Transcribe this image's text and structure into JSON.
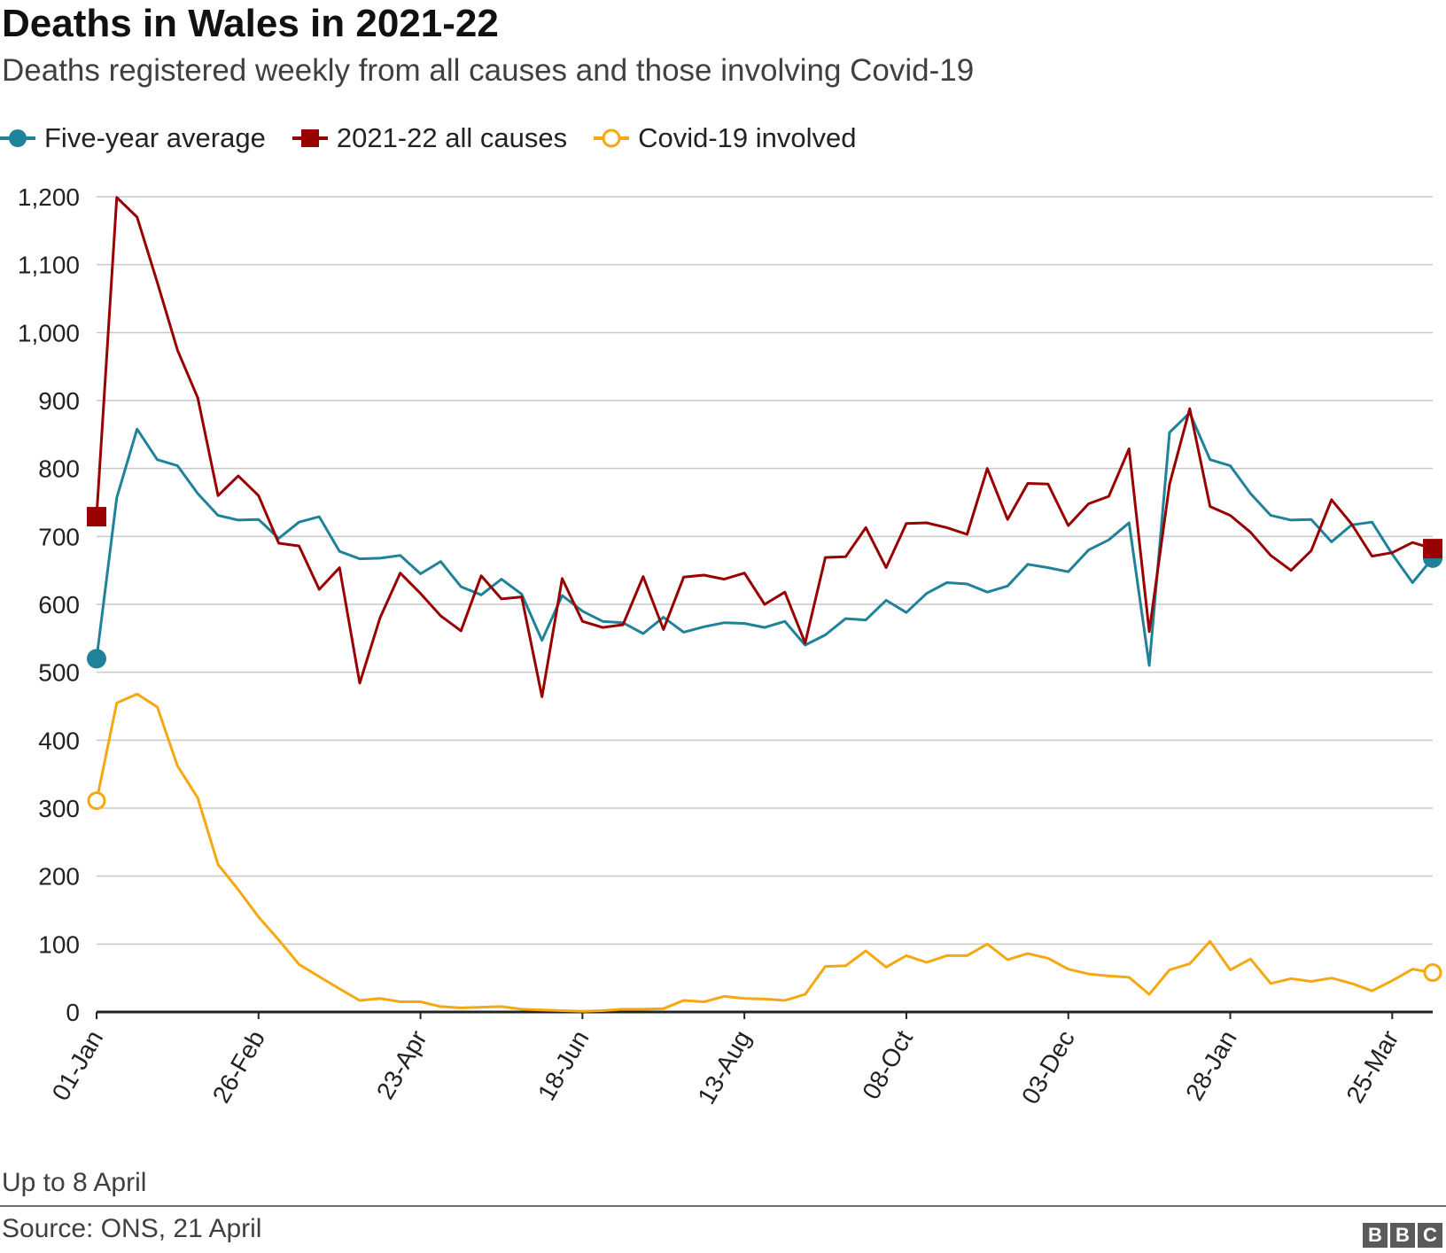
{
  "header": {
    "title": "Deaths in Wales in 2021-22",
    "subtitle": "Deaths registered weekly from all causes and those involving Covid-19"
  },
  "legend": {
    "items": [
      {
        "label": "Five-year average",
        "color": "#1f8299",
        "marker": "circle"
      },
      {
        "label": "2021-22 all causes",
        "color": "#990000",
        "marker": "square"
      },
      {
        "label": "Covid-19 involved",
        "color": "#f5a80f",
        "marker": "open-circle"
      }
    ]
  },
  "chart_data": {
    "type": "line",
    "title": "Deaths in Wales in 2021-22",
    "xlabel": "",
    "ylabel": "",
    "ylim": [
      0,
      1200
    ],
    "yticks": [
      0,
      100,
      200,
      300,
      400,
      500,
      600,
      700,
      800,
      900,
      1000,
      1100,
      1200
    ],
    "ytick_labels": [
      "0",
      "100",
      "200",
      "300",
      "400",
      "500",
      "600",
      "700",
      "800",
      "900",
      "1,000",
      "1,100",
      "1,200"
    ],
    "grid": true,
    "xtick_labels": [
      "01-Jan",
      "26-Feb",
      "23-Apr",
      "18-Jun",
      "13-Aug",
      "08-Oct",
      "03-Dec",
      "28-Jan",
      "25-Mar"
    ],
    "xtick_indices": [
      0,
      8,
      16,
      24,
      32,
      40,
      48,
      56,
      64
    ],
    "series": [
      {
        "name": "Five-year average",
        "color": "#1f8299",
        "marker": "circle",
        "values": [
          520,
          757,
          858,
          813,
          804,
          763,
          731,
          724,
          725,
          697,
          721,
          729,
          678,
          667,
          668,
          672,
          645,
          663,
          626,
          614,
          637,
          615,
          547,
          613,
          590,
          575,
          573,
          557,
          581,
          559,
          567,
          573,
          572,
          566,
          575,
          540,
          555,
          579,
          577,
          606,
          588,
          616,
          632,
          630,
          618,
          627,
          659,
          654,
          648,
          680,
          695,
          720,
          510,
          853,
          882,
          813,
          804,
          763,
          731,
          724,
          725,
          692,
          717,
          721,
          674,
          632,
          668
        ]
      },
      {
        "name": "2021-22 all causes",
        "color": "#990000",
        "marker": "square",
        "values": [
          729,
          1199,
          1170,
          1074,
          974,
          904,
          760,
          789,
          760,
          690,
          686,
          622,
          654,
          484,
          580,
          646,
          616,
          583,
          561,
          642,
          608,
          611,
          464,
          638,
          575,
          566,
          570,
          641,
          563,
          640,
          643,
          637,
          646,
          600,
          618,
          543,
          669,
          670,
          713,
          654,
          719,
          720,
          713,
          703,
          800,
          725,
          778,
          777,
          716,
          748,
          759,
          829,
          560,
          777,
          888,
          744,
          731,
          706,
          672,
          650,
          679,
          754,
          718,
          671,
          676,
          691,
          682
        ]
      },
      {
        "name": "Covid-19 involved",
        "color": "#f5a80f",
        "marker": "open-circle",
        "values": [
          311,
          455,
          468,
          449,
          362,
          315,
          217,
          180,
          140,
          106,
          70,
          52,
          34,
          17,
          20,
          15,
          15,
          8,
          6,
          7,
          8,
          4,
          3,
          2,
          1,
          2,
          4,
          4,
          5,
          17,
          15,
          23,
          20,
          19,
          17,
          26,
          67,
          68,
          90,
          66,
          83,
          73,
          83,
          83,
          100,
          77,
          86,
          79,
          63,
          56,
          53,
          51,
          26,
          62,
          71,
          104,
          62,
          78,
          42,
          49,
          45,
          50,
          42,
          31,
          46,
          63,
          58
        ]
      }
    ]
  },
  "footnote": "Up to 8 April",
  "source": "Source: ONS, 21 April",
  "logo": {
    "letters": [
      "B",
      "B",
      "C"
    ]
  }
}
